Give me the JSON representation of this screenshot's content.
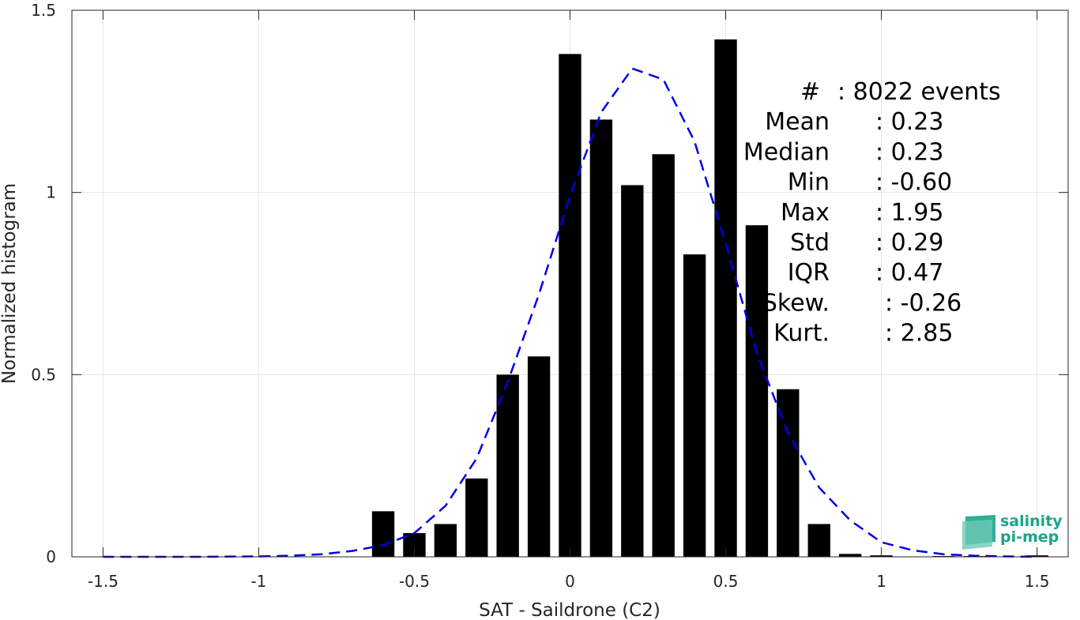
{
  "chart_data": {
    "type": "bar",
    "xlabel": "SAT - Saildrone (C2)",
    "ylabel": "Normalized histogram",
    "xlim": [
      -1.6,
      1.6
    ],
    "ylim": [
      0,
      1.5
    ],
    "x_ticks": [
      -1.5,
      -1,
      -0.5,
      0,
      0.5,
      1,
      1.5
    ],
    "x_tick_labels": [
      "-1.5",
      "-1",
      "-0.5",
      "0",
      "0.5",
      "1",
      "1.5"
    ],
    "y_ticks": [
      0,
      0.5,
      1,
      1.5
    ],
    "y_tick_labels": [
      "0",
      "0.5",
      "1",
      "1.5"
    ],
    "grid": true,
    "bar_color": "#000000",
    "bars": {
      "x": [
        -0.6,
        -0.5,
        -0.4,
        -0.3,
        -0.2,
        -0.1,
        0.0,
        0.1,
        0.2,
        0.3,
        0.4,
        0.5,
        0.6,
        0.7,
        0.8,
        0.9,
        1.0,
        1.1,
        1.2,
        1.3,
        1.4,
        1.5
      ],
      "values": [
        0.125,
        0.065,
        0.09,
        0.215,
        0.5,
        0.55,
        1.38,
        1.2,
        1.02,
        1.105,
        0.83,
        1.42,
        0.91,
        0.46,
        0.09,
        0.008,
        0.004,
        0.0,
        0.002,
        0.002,
        0.0,
        0.004
      ]
    },
    "fit_curve": {
      "style": "dashed",
      "color": "#0000e6",
      "x": [
        -1.5,
        -1.2,
        -1.0,
        -0.9,
        -0.8,
        -0.7,
        -0.6,
        -0.5,
        -0.4,
        -0.3,
        -0.2,
        -0.1,
        0.0,
        0.1,
        0.2,
        0.3,
        0.4,
        0.5,
        0.6,
        0.7,
        0.8,
        0.9,
        1.0,
        1.1,
        1.2,
        1.3,
        1.4,
        1.5
      ],
      "y": [
        0.0,
        0.0,
        0.001,
        0.003,
        0.007,
        0.016,
        0.032,
        0.065,
        0.14,
        0.27,
        0.48,
        0.72,
        0.99,
        1.22,
        1.34,
        1.31,
        1.14,
        0.86,
        0.56,
        0.34,
        0.19,
        0.1,
        0.04,
        0.018,
        0.007,
        0.003,
        0.001,
        0.0
      ]
    },
    "annotation": {
      "lines": [
        {
          "label": "#",
          "value": ": 8022 events"
        },
        {
          "label": "Mean",
          "value": ": 0.23"
        },
        {
          "label": "Median",
          "value": ": 0.23"
        },
        {
          "label": "Min",
          "value": ": -0.60"
        },
        {
          "label": "Max",
          "value": ": 1.95"
        },
        {
          "label": "Std",
          "value": ": 0.29"
        },
        {
          "label": "IQR",
          "value": ": 0.47"
        },
        {
          "label": "Skew.",
          "value": ": -0.26"
        },
        {
          "label": "Kurt.",
          "value": ": 2.85"
        }
      ]
    }
  },
  "logo": {
    "line1": "salinity",
    "line2": "pi-mep"
  }
}
